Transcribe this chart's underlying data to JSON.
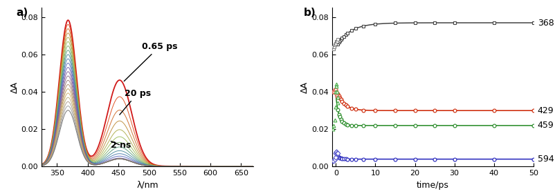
{
  "panel_a": {
    "xlabel": "λ/nm",
    "ylabel": "ΔA",
    "xlim": [
      325,
      670
    ],
    "ylim": [
      0.0,
      0.085
    ],
    "yticks": [
      0.0,
      0.02,
      0.04,
      0.06,
      0.08
    ],
    "xticks": [
      350,
      400,
      450,
      500,
      550,
      600,
      650
    ],
    "label_065ps": "0.65 ps",
    "label_20ps": "20 ps",
    "label_2ns": "2 ns"
  },
  "panel_b": {
    "xlabel": "time/ps",
    "ylabel": "ΔA",
    "xlim": [
      -1,
      50
    ],
    "ylim": [
      0.0,
      0.085
    ],
    "yticks": [
      0.0,
      0.02,
      0.04,
      0.06,
      0.08
    ],
    "xticks": [
      0,
      10,
      20,
      30,
      40,
      50
    ],
    "colors_368": "#444444",
    "colors_429": "#cc2200",
    "colors_459": "#228822",
    "colors_594": "#2222bb",
    "label_368": "368",
    "label_429": "429",
    "label_459": "459",
    "label_594": "594"
  }
}
